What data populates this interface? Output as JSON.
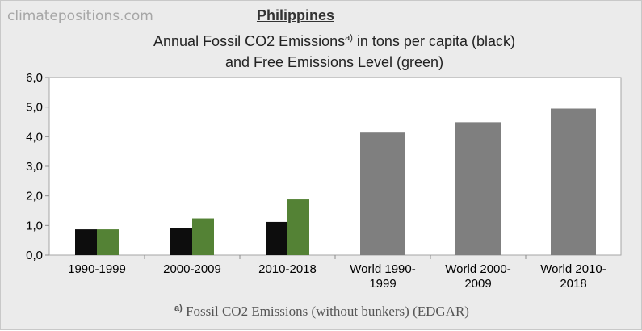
{
  "watermark": "climatepositions.com",
  "country": "Philippines",
  "title_line1_main": "Annual Fossil CO2 Emissions",
  "title_line1_sup": "a)",
  "title_line1_rest": " in tons per capita (black)",
  "title_line2": "and Free Emissions Level (green)",
  "footnote_mark": "a)",
  "footnote_text": "Fossil CO2 Emissions (without bunkers) (EDGAR)",
  "colors": {
    "black_series": "#0d0d0d",
    "green_series": "#548235",
    "world_series": "#7f7f7f",
    "plot_bg": "#ffffff",
    "page_bg": "#ebebeb"
  },
  "chart_data": {
    "type": "bar",
    "categories": [
      [
        "1990-1999"
      ],
      [
        "2000-2009"
      ],
      [
        "2010-2018"
      ],
      [
        "World 1990-",
        "1999"
      ],
      [
        "World 2000-",
        "2009"
      ],
      [
        "World 2010-",
        "2018"
      ]
    ],
    "series": [
      {
        "color": "#0d0d0d",
        "values": [
          0.87,
          0.9,
          1.12,
          null,
          null,
          null
        ]
      },
      {
        "color": "#548235",
        "values": [
          0.87,
          1.24,
          1.88,
          null,
          null,
          null
        ]
      },
      {
        "color": "#7f7f7f",
        "values": [
          null,
          null,
          null,
          4.14,
          4.49,
          4.95
        ]
      }
    ],
    "ylim": [
      0,
      6
    ],
    "yticks": [
      "0,0",
      "1,0",
      "2,0",
      "3,0",
      "4,0",
      "5,0",
      "6,0"
    ],
    "grid": false
  }
}
